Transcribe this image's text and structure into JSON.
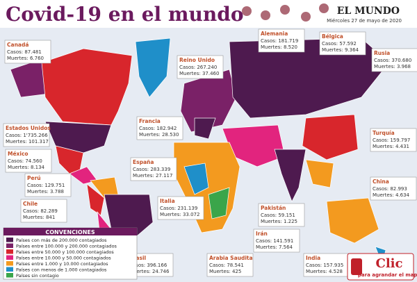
{
  "header": {
    "title": "Covid-19 en el mundo",
    "brand": "EL MUNDO",
    "date": "Miércoles 27 de mayo de 2020"
  },
  "countries": [
    {
      "name": "Canadá",
      "cases": "Casos: 87.481",
      "deaths": "Muertes: 6.760"
    },
    {
      "name": "Estados Unidos",
      "cases": "Casos: 1'735.266",
      "deaths": "Muertes: 101.317"
    },
    {
      "name": "México",
      "cases": "Casos: 74.560",
      "deaths": "Muertes: 8.134"
    },
    {
      "name": "Perú",
      "cases": "Casos: 129.751",
      "deaths": "Muertes: 3.788"
    },
    {
      "name": "Chile",
      "cases": "Casos: 82.289",
      "deaths": "Muertes: 841"
    },
    {
      "name": "Brasil",
      "cases": "Casos: 396.166",
      "deaths": "Muertes: 24.746"
    },
    {
      "name": "Reino Unido",
      "cases": "Casos: 267.240",
      "deaths": "Muertes: 37.460"
    },
    {
      "name": "Francia",
      "cases": "Casos: 182.942",
      "deaths": "Muertes: 28.530"
    },
    {
      "name": "España",
      "cases": "Casos: 283.339",
      "deaths": "Muertes: 27.117"
    },
    {
      "name": "Italia",
      "cases": "Casos: 231.139",
      "deaths": "Muertes: 33.072"
    },
    {
      "name": "Alemania",
      "cases": "Casos: 181.719",
      "deaths": "Muertes: 8.520"
    },
    {
      "name": "Bélgica",
      "cases": "Casos: 57.592",
      "deaths": "Muertes: 9.364"
    },
    {
      "name": "Rusia",
      "cases": "Casos: 370.680",
      "deaths": "Muertes: 3.968"
    },
    {
      "name": "Turquía",
      "cases": "Casos: 159.797",
      "deaths": "Muertes: 4.431"
    },
    {
      "name": "China",
      "cases": "Casos: 82.993",
      "deaths": "Muertes: 4.634"
    },
    {
      "name": "Pakistán",
      "cases": "Casos: 59.151",
      "deaths": "Muertes: 1.225"
    },
    {
      "name": "Irán",
      "cases": "Casos: 141.591",
      "deaths": "Muertes: 7.564"
    },
    {
      "name": "Arabia Saudita",
      "cases": "Casos: 78.541",
      "deaths": "Muertes: 425"
    },
    {
      "name": "India",
      "cases": "Casos: 157.935",
      "deaths": "Muertes: 4.528"
    }
  ],
  "legend": {
    "title": "CONVENCIONES",
    "items": [
      {
        "label": "Países con más de 200.000 contagiados",
        "color": "#4e1a4f"
      },
      {
        "label": "Países entre 100.000 y 200.000 contagiados",
        "color": "#7a2167"
      },
      {
        "label": "Países entre 50.000 y 100.000 contagiados",
        "color": "#d8262c"
      },
      {
        "label": "Países entre 10.000 y 50.000 contagiados",
        "color": "#e2247e"
      },
      {
        "label": "Países entre 1.000 y 10.000 contagiados",
        "color": "#f39a1f"
      },
      {
        "label": "Países con menos de 1.000 contagiados",
        "color": "#1f8fc9"
      },
      {
        "label": "Países sin contagio",
        "color": "#3aa54a"
      }
    ]
  },
  "button": {
    "title": "Clic",
    "subtitle": "para agrandar el mapa"
  }
}
